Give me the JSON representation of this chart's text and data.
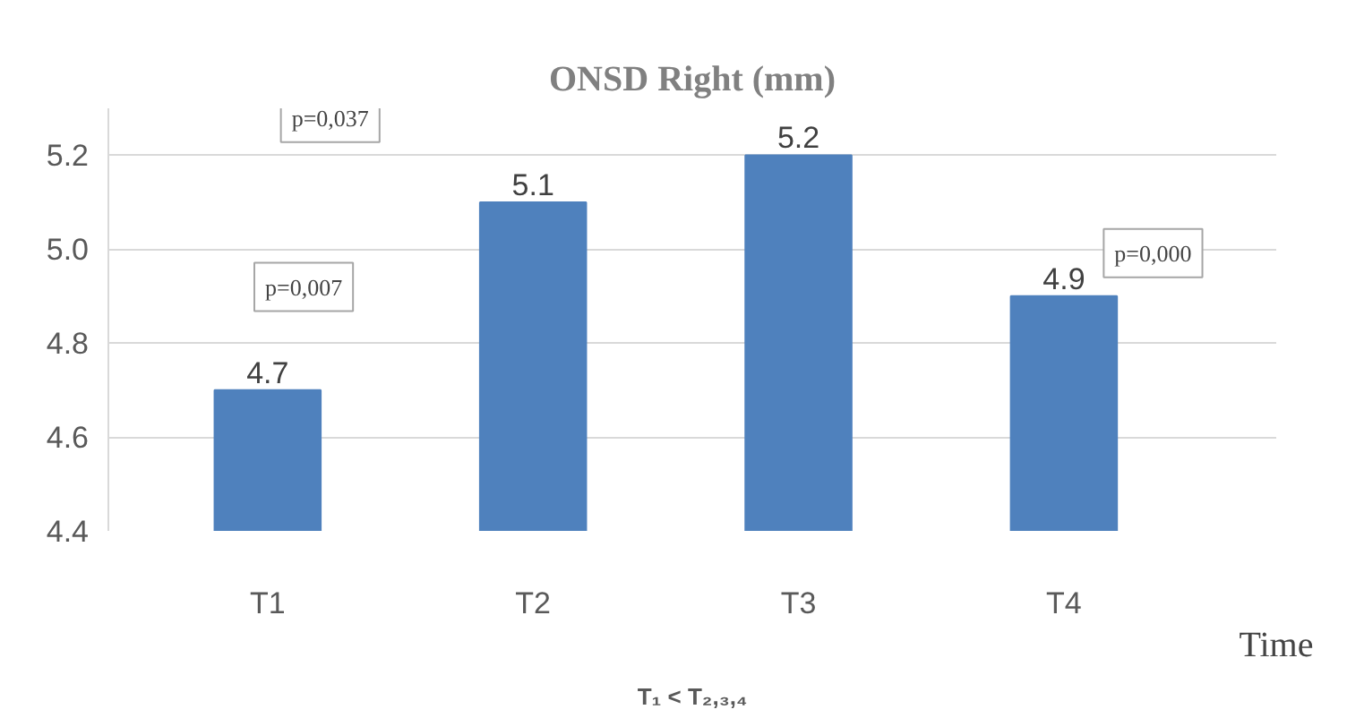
{
  "chart_data": {
    "type": "bar",
    "title": "ONSD Right (mm)",
    "xlabel": "Time",
    "categories": [
      "T1",
      "T2",
      "T3",
      "T4"
    ],
    "values": [
      4.7,
      5.1,
      5.2,
      4.9
    ],
    "color": "#4f81bd",
    "ylim": [
      4.4,
      5.3
    ],
    "yticks": [
      {
        "value": 4.4,
        "label": "4.4"
      },
      {
        "value": 4.6,
        "label": "4.6"
      },
      {
        "value": 4.8,
        "label": "4.8"
      },
      {
        "value": 5.0,
        "label": "5.0"
      },
      {
        "value": 5.2,
        "label": "5.2"
      }
    ],
    "grid": "y",
    "data_labels": true,
    "annotations": [
      "p=0,037",
      "p=0,007",
      "p=0,000",
      "T₁ < T₂,₃,₄"
    ]
  }
}
